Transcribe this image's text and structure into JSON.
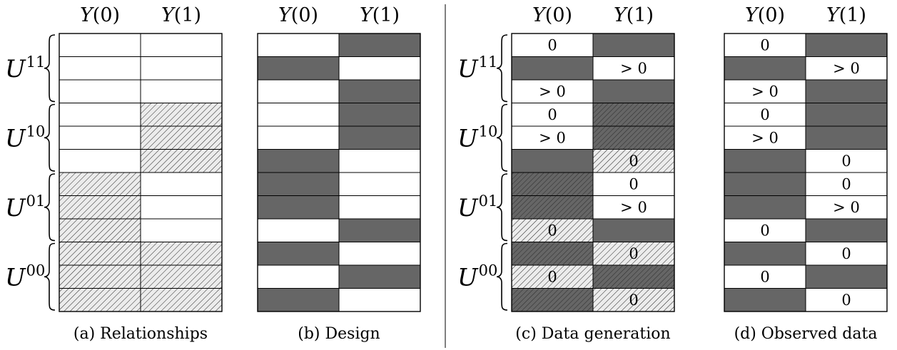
{
  "column_headers": [
    "Y(0)",
    "Y(1)"
  ],
  "group_labels": [
    {
      "symbol": "U",
      "superscript": "11"
    },
    {
      "symbol": "U",
      "superscript": "10"
    },
    {
      "symbol": "U",
      "superscript": "01"
    },
    {
      "symbol": "U",
      "superscript": "00"
    }
  ],
  "colors": {
    "dark_fill": "#666666",
    "hatch_fill": "#ececec",
    "line": "#000000"
  },
  "legend_note": "fill codes: w = white, d = dark gray, h = light hatched, dh = dark hatched",
  "panels": [
    {
      "id": "a",
      "caption": "(a) Relationships",
      "show_group_labels": true,
      "rows": [
        [
          {
            "f": "w",
            "t": ""
          },
          {
            "f": "w",
            "t": ""
          }
        ],
        [
          {
            "f": "w",
            "t": ""
          },
          {
            "f": "w",
            "t": ""
          }
        ],
        [
          {
            "f": "w",
            "t": ""
          },
          {
            "f": "w",
            "t": ""
          }
        ],
        [
          {
            "f": "w",
            "t": ""
          },
          {
            "f": "h",
            "t": ""
          }
        ],
        [
          {
            "f": "w",
            "t": ""
          },
          {
            "f": "h",
            "t": ""
          }
        ],
        [
          {
            "f": "w",
            "t": ""
          },
          {
            "f": "h",
            "t": ""
          }
        ],
        [
          {
            "f": "h",
            "t": ""
          },
          {
            "f": "w",
            "t": ""
          }
        ],
        [
          {
            "f": "h",
            "t": ""
          },
          {
            "f": "w",
            "t": ""
          }
        ],
        [
          {
            "f": "h",
            "t": ""
          },
          {
            "f": "w",
            "t": ""
          }
        ],
        [
          {
            "f": "h",
            "t": ""
          },
          {
            "f": "h",
            "t": ""
          }
        ],
        [
          {
            "f": "h",
            "t": ""
          },
          {
            "f": "h",
            "t": ""
          }
        ],
        [
          {
            "f": "h",
            "t": ""
          },
          {
            "f": "h",
            "t": ""
          }
        ]
      ]
    },
    {
      "id": "b",
      "caption": "(b) Design",
      "show_group_labels": false,
      "rows": [
        [
          {
            "f": "w",
            "t": ""
          },
          {
            "f": "d",
            "t": ""
          }
        ],
        [
          {
            "f": "d",
            "t": ""
          },
          {
            "f": "w",
            "t": ""
          }
        ],
        [
          {
            "f": "w",
            "t": ""
          },
          {
            "f": "d",
            "t": ""
          }
        ],
        [
          {
            "f": "w",
            "t": ""
          },
          {
            "f": "d",
            "t": ""
          }
        ],
        [
          {
            "f": "w",
            "t": ""
          },
          {
            "f": "d",
            "t": ""
          }
        ],
        [
          {
            "f": "d",
            "t": ""
          },
          {
            "f": "w",
            "t": ""
          }
        ],
        [
          {
            "f": "d",
            "t": ""
          },
          {
            "f": "w",
            "t": ""
          }
        ],
        [
          {
            "f": "d",
            "t": ""
          },
          {
            "f": "w",
            "t": ""
          }
        ],
        [
          {
            "f": "w",
            "t": ""
          },
          {
            "f": "d",
            "t": ""
          }
        ],
        [
          {
            "f": "d",
            "t": ""
          },
          {
            "f": "w",
            "t": ""
          }
        ],
        [
          {
            "f": "w",
            "t": ""
          },
          {
            "f": "d",
            "t": ""
          }
        ],
        [
          {
            "f": "d",
            "t": ""
          },
          {
            "f": "w",
            "t": ""
          }
        ]
      ]
    },
    {
      "id": "c",
      "caption": "(c) Data generation",
      "show_group_labels": true,
      "rows": [
        [
          {
            "f": "w",
            "t": "0"
          },
          {
            "f": "d",
            "t": ""
          }
        ],
        [
          {
            "f": "d",
            "t": ""
          },
          {
            "f": "w",
            "t": "> 0"
          }
        ],
        [
          {
            "f": "w",
            "t": "> 0"
          },
          {
            "f": "d",
            "t": ""
          }
        ],
        [
          {
            "f": "w",
            "t": "0"
          },
          {
            "f": "dh",
            "t": ""
          }
        ],
        [
          {
            "f": "w",
            "t": "> 0"
          },
          {
            "f": "dh",
            "t": ""
          }
        ],
        [
          {
            "f": "d",
            "t": ""
          },
          {
            "f": "h",
            "t": "0"
          }
        ],
        [
          {
            "f": "dh",
            "t": ""
          },
          {
            "f": "w",
            "t": "0"
          }
        ],
        [
          {
            "f": "dh",
            "t": ""
          },
          {
            "f": "w",
            "t": "> 0"
          }
        ],
        [
          {
            "f": "h",
            "t": "0"
          },
          {
            "f": "d",
            "t": ""
          }
        ],
        [
          {
            "f": "dh",
            "t": ""
          },
          {
            "f": "h",
            "t": "0"
          }
        ],
        [
          {
            "f": "h",
            "t": "0"
          },
          {
            "f": "dh",
            "t": ""
          }
        ],
        [
          {
            "f": "dh",
            "t": ""
          },
          {
            "f": "h",
            "t": "0"
          }
        ]
      ]
    },
    {
      "id": "d",
      "caption": "(d) Observed data",
      "show_group_labels": false,
      "rows": [
        [
          {
            "f": "w",
            "t": "0"
          },
          {
            "f": "d",
            "t": ""
          }
        ],
        [
          {
            "f": "d",
            "t": ""
          },
          {
            "f": "w",
            "t": "> 0"
          }
        ],
        [
          {
            "f": "w",
            "t": "> 0"
          },
          {
            "f": "d",
            "t": ""
          }
        ],
        [
          {
            "f": "w",
            "t": "0"
          },
          {
            "f": "d",
            "t": ""
          }
        ],
        [
          {
            "f": "w",
            "t": "> 0"
          },
          {
            "f": "d",
            "t": ""
          }
        ],
        [
          {
            "f": "d",
            "t": ""
          },
          {
            "f": "w",
            "t": "0"
          }
        ],
        [
          {
            "f": "d",
            "t": ""
          },
          {
            "f": "w",
            "t": "0"
          }
        ],
        [
          {
            "f": "d",
            "t": ""
          },
          {
            "f": "w",
            "t": "> 0"
          }
        ],
        [
          {
            "f": "w",
            "t": "0"
          },
          {
            "f": "d",
            "t": ""
          }
        ],
        [
          {
            "f": "d",
            "t": ""
          },
          {
            "f": "w",
            "t": "0"
          }
        ],
        [
          {
            "f": "w",
            "t": "0"
          },
          {
            "f": "d",
            "t": ""
          }
        ],
        [
          {
            "f": "d",
            "t": ""
          },
          {
            "f": "w",
            "t": "0"
          }
        ]
      ]
    }
  ]
}
